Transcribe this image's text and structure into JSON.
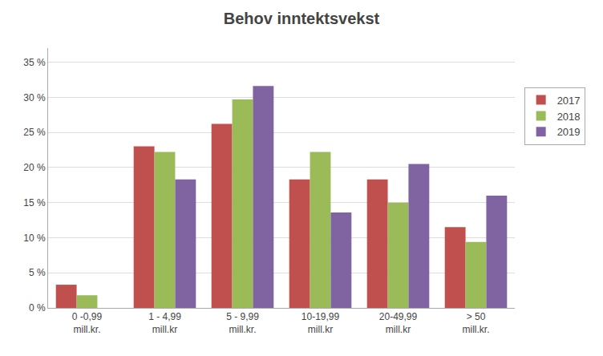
{
  "chart_data": {
    "type": "bar",
    "title": "Behov inntektsvekst",
    "categories": [
      "0 -0,99\nmill.kr.",
      "1 - 4,99\nmill.kr",
      "5 - 9,99\nmill.kr.",
      "10-19,99\nmill.kr",
      "20-49,99\nmill.kr",
      "> 50\nmill.kr."
    ],
    "series": [
      {
        "name": "2017",
        "color": "#c0504d",
        "values": [
          3.3,
          23.0,
          26.2,
          18.3,
          18.3,
          11.5
        ]
      },
      {
        "name": "2018",
        "color": "#9bbb59",
        "values": [
          1.8,
          22.2,
          29.7,
          22.2,
          15.0,
          9.4
        ]
      },
      {
        "name": "2019",
        "color": "#8064a2",
        "values": [
          0.0,
          18.3,
          31.6,
          13.6,
          20.5,
          16.0
        ]
      }
    ],
    "ylim": [
      0,
      37
    ],
    "yticks": [
      {
        "value": 0,
        "label": "0 %"
      },
      {
        "value": 5,
        "label": "5 %"
      },
      {
        "value": 10,
        "label": "10 %"
      },
      {
        "value": 15,
        "label": "15 %"
      },
      {
        "value": 20,
        "label": "20 %"
      },
      {
        "value": 25,
        "label": "25 %"
      },
      {
        "value": 30,
        "label": "30 %"
      },
      {
        "value": 35,
        "label": "35 %"
      }
    ],
    "grid": true,
    "legend": "right"
  }
}
